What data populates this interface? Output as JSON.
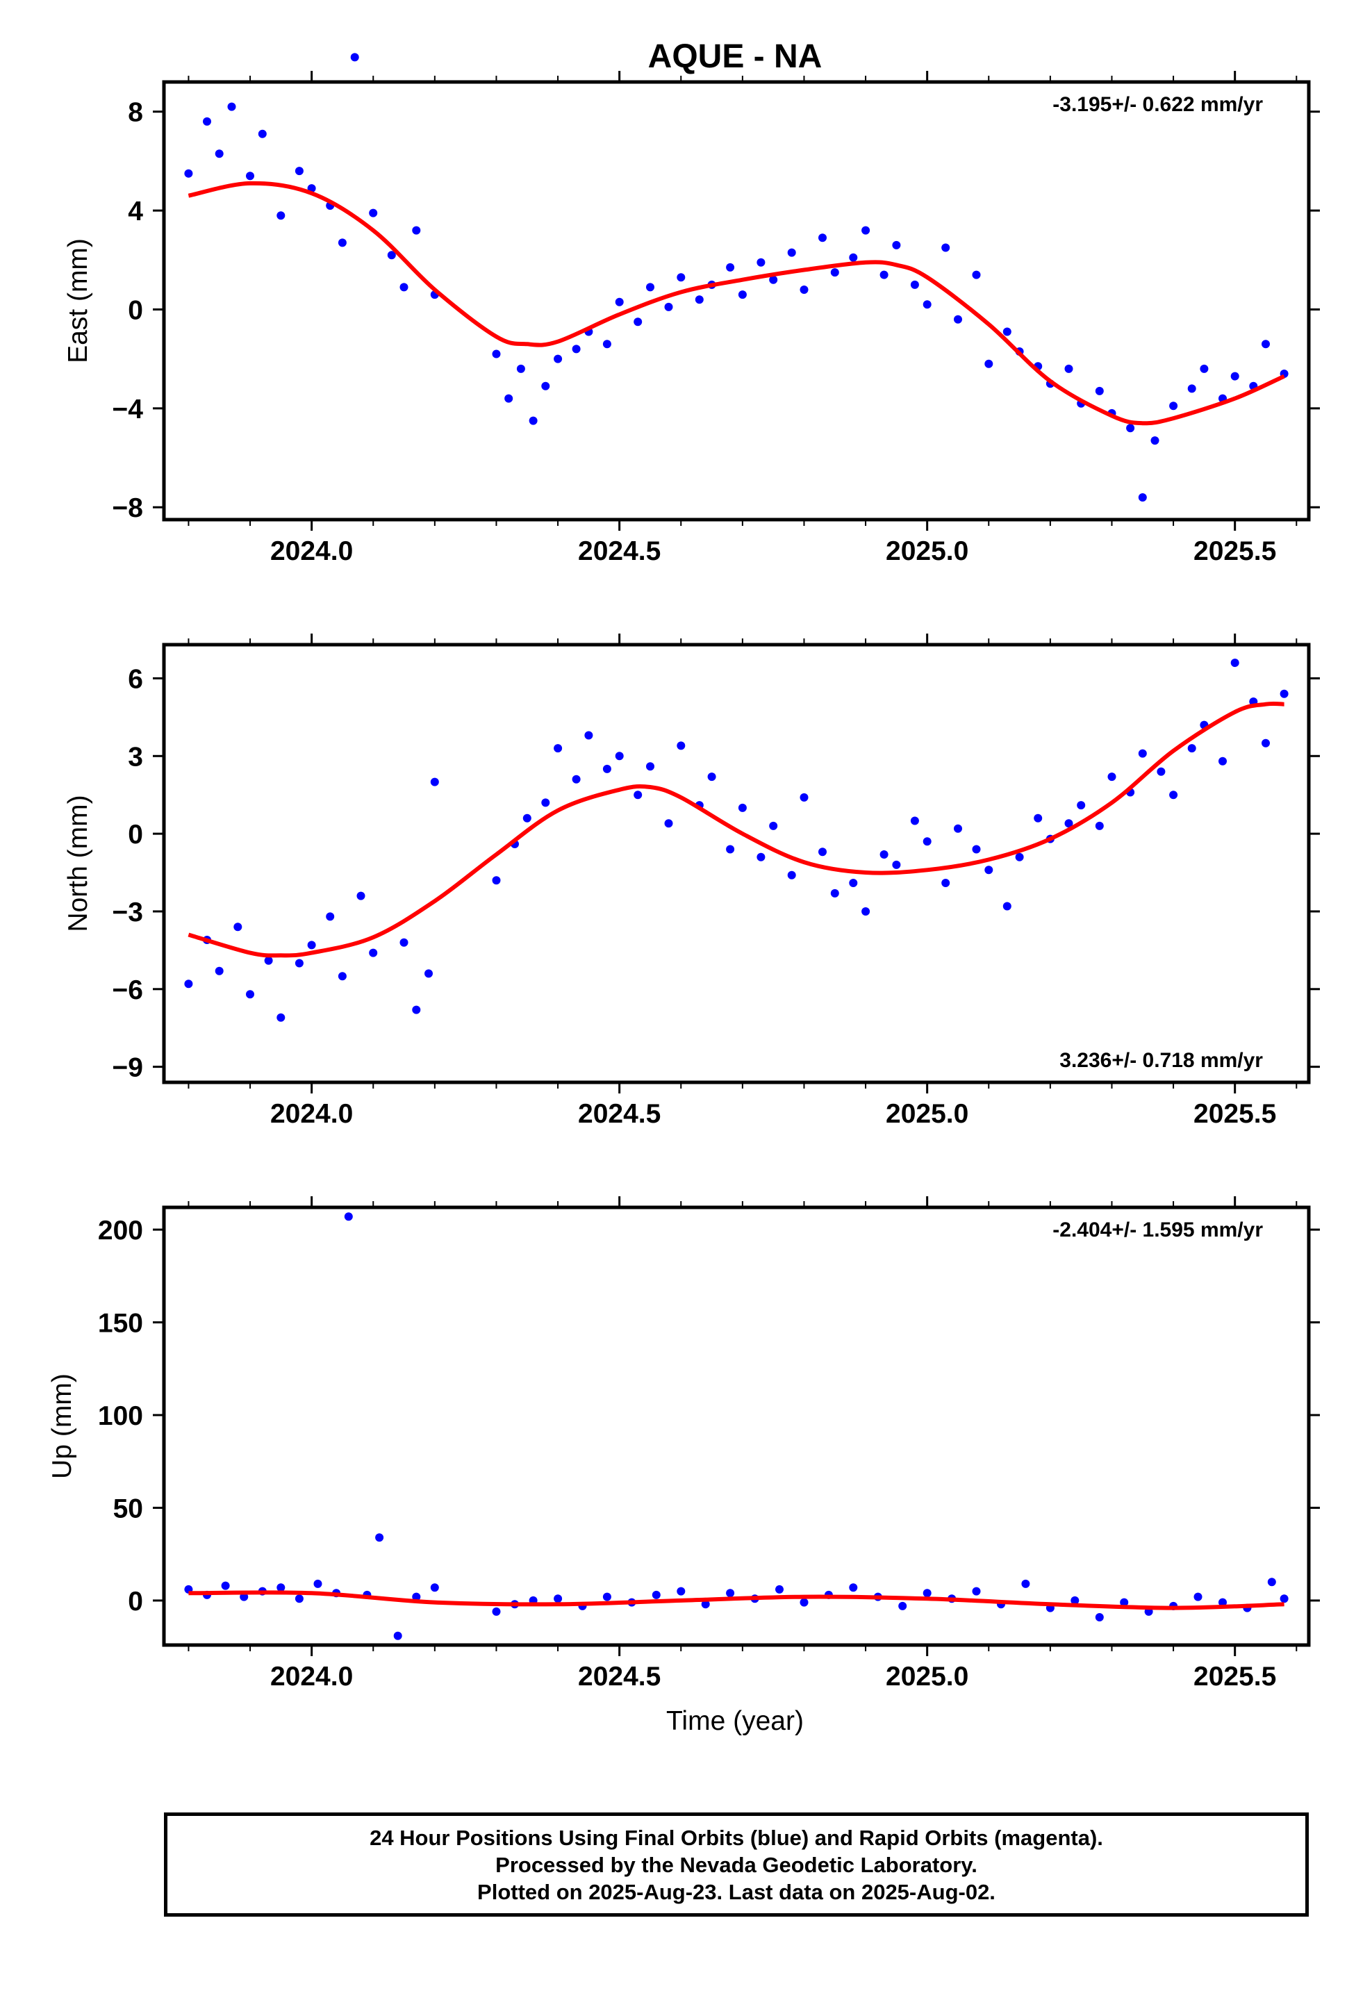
{
  "title": "AQUE - NA",
  "xlabel": "Time (year)",
  "colors": {
    "final_orbits": "#0000ff",
    "fit": "#ff0000",
    "frame": "#000000"
  },
  "footer": {
    "line1": "24 Hour Positions Using Final Orbits (blue) and Rapid Orbits (magenta).",
    "line2": "Processed by the Nevada Geodetic Laboratory.",
    "line3": "Plotted on 2025-Aug-23. Last data on 2025-Aug-02."
  },
  "chart_data": [
    {
      "type": "scatter",
      "panel": "east",
      "ylabel": "East (mm)",
      "rate_label": "-3.195+/- 0.622 mm/yr",
      "rate_placement": "top-right",
      "xlim": [
        2023.76,
        2025.62
      ],
      "ylim": [
        -8.5,
        9.2
      ],
      "x_ticks": [
        2024.0,
        2024.5,
        2025.0,
        2025.5
      ],
      "x_tick_labels": [
        "2024.0",
        "2024.5",
        "2025.0",
        "2025.5"
      ],
      "y_ticks": [
        -8,
        -4,
        0,
        4,
        8
      ],
      "y_tick_labels": [
        "−8",
        "−4",
        "0",
        "4",
        "8"
      ],
      "fit_line": {
        "x": [
          2023.8,
          2023.9,
          2024.0,
          2024.1,
          2024.2,
          2024.3,
          2024.35,
          2024.4,
          2024.5,
          2024.6,
          2024.7,
          2024.8,
          2024.9,
          2024.95,
          2025.0,
          2025.1,
          2025.2,
          2025.3,
          2025.35,
          2025.4,
          2025.5,
          2025.58
        ],
        "y": [
          4.6,
          5.1,
          4.7,
          3.2,
          0.8,
          -1.1,
          -1.4,
          -1.3,
          -0.2,
          0.7,
          1.2,
          1.6,
          1.9,
          1.8,
          1.3,
          -0.6,
          -2.9,
          -4.3,
          -4.6,
          -4.4,
          -3.6,
          -2.7
        ]
      },
      "series": [
        {
          "x": [
            2023.8,
            2023.83,
            2023.85,
            2023.87,
            2023.9,
            2023.92,
            2023.95,
            2023.98,
            2024.0,
            2024.03,
            2024.05,
            2024.07,
            2024.1,
            2024.13,
            2024.15,
            2024.17,
            2024.2,
            2024.3,
            2024.32,
            2024.34,
            2024.36,
            2024.38,
            2024.4,
            2024.43,
            2024.45,
            2024.48,
            2024.5,
            2024.53,
            2024.55,
            2024.58,
            2024.6,
            2024.63,
            2024.65,
            2024.68,
            2024.7,
            2024.73,
            2024.75,
            2024.78,
            2024.8,
            2024.83,
            2024.85,
            2024.88,
            2024.9,
            2024.93,
            2024.95,
            2024.98,
            2025.0,
            2025.03,
            2025.05,
            2025.08,
            2025.1,
            2025.13,
            2025.15,
            2025.18,
            2025.2,
            2025.23,
            2025.25,
            2025.28,
            2025.3,
            2025.33,
            2025.35,
            2025.37,
            2025.4,
            2025.43,
            2025.45,
            2025.48,
            2025.5,
            2025.53,
            2025.55,
            2025.58
          ],
          "y": [
            5.5,
            7.6,
            6.3,
            8.2,
            5.4,
            7.1,
            3.8,
            5.6,
            4.9,
            4.2,
            2.7,
            10.2,
            3.9,
            2.2,
            0.9,
            3.2,
            0.6,
            -1.8,
            -3.6,
            -2.4,
            -4.5,
            -3.1,
            -2.0,
            -1.6,
            -0.9,
            -1.4,
            0.3,
            -0.5,
            0.9,
            0.1,
            1.3,
            0.4,
            1.0,
            1.7,
            0.6,
            1.9,
            1.2,
            2.3,
            0.8,
            2.9,
            1.5,
            2.1,
            3.2,
            1.4,
            2.6,
            1.0,
            0.2,
            2.5,
            -0.4,
            1.4,
            -2.2,
            -0.9,
            -1.7,
            -2.3,
            -3.0,
            -2.4,
            -3.8,
            -3.3,
            -4.2,
            -4.8,
            -7.6,
            -5.3,
            -3.9,
            -3.2,
            -2.4,
            -3.6,
            -2.7,
            -3.1,
            -1.4,
            -2.6
          ]
        }
      ]
    },
    {
      "type": "scatter",
      "panel": "north",
      "ylabel": "North (mm)",
      "rate_label": "3.236+/- 0.718 mm/yr",
      "rate_placement": "bottom-right",
      "xlim": [
        2023.76,
        2025.62
      ],
      "ylim": [
        -9.6,
        7.3
      ],
      "x_ticks": [
        2024.0,
        2024.5,
        2025.0,
        2025.5
      ],
      "x_tick_labels": [
        "2024.0",
        "2024.5",
        "2025.0",
        "2025.5"
      ],
      "y_ticks": [
        -9,
        -6,
        -3,
        0,
        3,
        6
      ],
      "y_tick_labels": [
        "−9",
        "−6",
        "−3",
        "0",
        "3",
        "6"
      ],
      "fit_line": {
        "x": [
          2023.8,
          2023.9,
          2023.95,
          2024.0,
          2024.1,
          2024.2,
          2024.3,
          2024.4,
          2024.5,
          2024.55,
          2024.6,
          2024.7,
          2024.8,
          2024.9,
          2025.0,
          2025.1,
          2025.2,
          2025.3,
          2025.4,
          2025.5,
          2025.55,
          2025.58
        ],
        "y": [
          -3.9,
          -4.6,
          -4.7,
          -4.6,
          -4.0,
          -2.6,
          -0.8,
          0.9,
          1.7,
          1.8,
          1.4,
          0.0,
          -1.1,
          -1.5,
          -1.4,
          -1.0,
          -0.2,
          1.2,
          3.2,
          4.7,
          5.0,
          5.0
        ]
      },
      "series": [
        {
          "x": [
            2023.8,
            2023.83,
            2023.85,
            2023.88,
            2023.9,
            2023.93,
            2023.95,
            2023.98,
            2024.0,
            2024.03,
            2024.05,
            2024.08,
            2024.1,
            2024.15,
            2024.17,
            2024.19,
            2024.2,
            2024.3,
            2024.33,
            2024.35,
            2024.38,
            2024.4,
            2024.43,
            2024.45,
            2024.48,
            2024.5,
            2024.53,
            2024.55,
            2024.58,
            2024.6,
            2024.63,
            2024.65,
            2024.68,
            2024.7,
            2024.73,
            2024.75,
            2024.78,
            2024.8,
            2024.83,
            2024.85,
            2024.88,
            2024.9,
            2024.93,
            2024.95,
            2024.98,
            2025.0,
            2025.03,
            2025.05,
            2025.08,
            2025.1,
            2025.13,
            2025.15,
            2025.18,
            2025.2,
            2025.23,
            2025.25,
            2025.28,
            2025.3,
            2025.33,
            2025.35,
            2025.38,
            2025.4,
            2025.43,
            2025.45,
            2025.48,
            2025.5,
            2025.53,
            2025.55,
            2025.58
          ],
          "y": [
            -5.8,
            -4.1,
            -5.3,
            -3.6,
            -6.2,
            -4.9,
            -7.1,
            -5.0,
            -4.3,
            -3.2,
            -5.5,
            -2.4,
            -4.6,
            -4.2,
            -6.8,
            -5.4,
            2.0,
            -1.8,
            -0.4,
            0.6,
            1.2,
            3.3,
            2.1,
            3.8,
            2.5,
            3.0,
            1.5,
            2.6,
            0.4,
            3.4,
            1.1,
            2.2,
            -0.6,
            1.0,
            -0.9,
            0.3,
            -1.6,
            1.4,
            -0.7,
            -2.3,
            -1.9,
            -3.0,
            -0.8,
            -1.2,
            0.5,
            -0.3,
            -1.9,
            0.2,
            -0.6,
            -1.4,
            -2.8,
            -0.9,
            0.6,
            -0.2,
            0.4,
            1.1,
            0.3,
            2.2,
            1.6,
            3.1,
            2.4,
            1.5,
            3.3,
            4.2,
            2.8,
            6.6,
            5.1,
            3.5,
            5.4
          ]
        }
      ]
    },
    {
      "type": "scatter",
      "panel": "up",
      "ylabel": "Up (mm)",
      "rate_label": "-2.404+/- 1.595 mm/yr",
      "rate_placement": "top-right",
      "xlim": [
        2023.76,
        2025.62
      ],
      "ylim": [
        -24,
        212
      ],
      "x_ticks": [
        2024.0,
        2024.5,
        2025.0,
        2025.5
      ],
      "x_tick_labels": [
        "2024.0",
        "2024.5",
        "2025.0",
        "2025.5"
      ],
      "y_ticks": [
        0,
        50,
        100,
        150,
        200
      ],
      "y_tick_labels": [
        "0",
        "50",
        "100",
        "150",
        "200"
      ],
      "fit_line": {
        "x": [
          2023.8,
          2024.0,
          2024.2,
          2024.4,
          2024.6,
          2024.8,
          2025.0,
          2025.2,
          2025.4,
          2025.58
        ],
        "y": [
          4,
          4,
          -1,
          -2,
          0,
          2,
          1,
          -2,
          -4,
          -2
        ]
      },
      "series": [
        {
          "x": [
            2023.8,
            2023.83,
            2023.86,
            2023.89,
            2023.92,
            2023.95,
            2023.98,
            2024.01,
            2024.04,
            2024.06,
            2024.09,
            2024.11,
            2024.14,
            2024.17,
            2024.2,
            2024.3,
            2024.33,
            2024.36,
            2024.4,
            2024.44,
            2024.48,
            2024.52,
            2024.56,
            2024.6,
            2024.64,
            2024.68,
            2024.72,
            2024.76,
            2024.8,
            2024.84,
            2024.88,
            2024.92,
            2024.96,
            2025.0,
            2025.04,
            2025.08,
            2025.12,
            2025.16,
            2025.2,
            2025.24,
            2025.28,
            2025.32,
            2025.36,
            2025.4,
            2025.44,
            2025.48,
            2025.52,
            2025.56,
            2025.58
          ],
          "y": [
            6,
            3,
            8,
            2,
            5,
            7,
            1,
            9,
            4,
            207,
            3,
            34,
            -19,
            2,
            7,
            -6,
            -2,
            0,
            1,
            -3,
            2,
            -1,
            3,
            5,
            -2,
            4,
            1,
            6,
            -1,
            3,
            7,
            2,
            -3,
            4,
            1,
            5,
            -2,
            9,
            -4,
            0,
            -9,
            -1,
            -6,
            -3,
            2,
            -1,
            -4,
            10,
            1
          ]
        }
      ]
    }
  ]
}
